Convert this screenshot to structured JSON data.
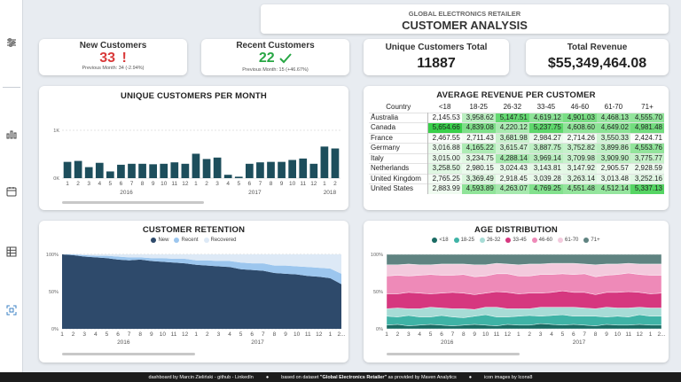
{
  "header": {
    "subtitle": "GLOBAL ELECTRONICS RETAILER",
    "title": "CUSTOMER ANALYSIS"
  },
  "kpis": {
    "new_customers": {
      "label": "New Customers",
      "value": "33",
      "sub": "Previous Month: 34 (-2.94%)",
      "color": "#d93a3a"
    },
    "recent_customers": {
      "label": "Recent Customers",
      "value": "22",
      "sub": "Previous Month: 15 (+46.67%)",
      "color": "#28a745"
    },
    "unique_total": {
      "label": "Unique Customers Total",
      "value": "11887"
    },
    "total_revenue": {
      "label": "Total Revenue",
      "value": "$55,349,464.08"
    }
  },
  "sidebar": {
    "icons": [
      "sliders-icon",
      "bar-chart-icon",
      "calendar-icon",
      "table-icon",
      "scan-icon"
    ]
  },
  "revenue_table": {
    "title": "AVERAGE REVENUE PER CUSTOMER",
    "corner": "Country",
    "columns": [
      "<18",
      "18-25",
      "26-32",
      "33-45",
      "46-60",
      "61-70",
      "71+"
    ],
    "rows": [
      {
        "country": "Australia",
        "values": [
          "2,145.53",
          "3,958.62",
          "5,147.51",
          "4,619.12",
          "4,901.03",
          "4,468.13",
          "4,555.70"
        ]
      },
      {
        "country": "Canada",
        "values": [
          "5,654.66",
          "4,839.08",
          "4,220.12",
          "5,237.75",
          "4,608.60",
          "4,649.02",
          "4,981.48"
        ]
      },
      {
        "country": "France",
        "values": [
          "2,467.55",
          "2,711.43",
          "3,681.98",
          "2,984.27",
          "2,714.26",
          "3,550.33",
          "2,424.71"
        ]
      },
      {
        "country": "Germany",
        "values": [
          "3,016.88",
          "4,165.22",
          "3,615.47",
          "3,887.75",
          "3,752.82",
          "3,899.86",
          "4,553.76"
        ]
      },
      {
        "country": "Italy",
        "values": [
          "3,015.00",
          "3,234.75",
          "4,288.14",
          "3,969.14",
          "3,709.98",
          "3,909.90",
          "3,775.77"
        ]
      },
      {
        "country": "Netherlands",
        "values": [
          "3,258.50",
          "2,980.15",
          "3,024.43",
          "3,143.81",
          "3,147.92",
          "2,905.57",
          "2,928.59"
        ]
      },
      {
        "country": "United Kingdom",
        "values": [
          "2,765.25",
          "3,369.49",
          "2,918.45",
          "3,039.28",
          "3,263.14",
          "3,013.48",
          "3,252.16"
        ]
      },
      {
        "country": "United States",
        "values": [
          "2,883.99",
          "4,593.89",
          "4,263.07",
          "4,769.25",
          "4,551.48",
          "4,512.14",
          "5,337.13"
        ]
      }
    ]
  },
  "chart_data": [
    {
      "type": "bar",
      "title": "UNIQUE CUSTOMERS PER MONTH",
      "categories": [
        "1",
        "2",
        "3",
        "4",
        "5",
        "6",
        "7",
        "8",
        "9",
        "10",
        "11",
        "12",
        "1",
        "2",
        "3",
        "4",
        "5",
        "6",
        "7",
        "8",
        "9",
        "10",
        "11",
        "12",
        "1",
        "2"
      ],
      "year_labels": [
        "2016",
        "2017",
        "2018"
      ],
      "values": [
        340,
        360,
        230,
        320,
        140,
        280,
        300,
        300,
        290,
        300,
        330,
        300,
        510,
        400,
        430,
        70,
        30,
        300,
        330,
        340,
        340,
        380,
        410,
        300,
        660,
        620
      ],
      "yticks": [
        "0K",
        "1K"
      ],
      "ylim": [
        0,
        1000
      ]
    },
    {
      "type": "area",
      "title": "CUSTOMER RETENTION",
      "legend": [
        "New",
        "Recent",
        "Recovered"
      ],
      "colors": [
        "#2e4a6b",
        "#9cc6ee",
        "#dde9f6"
      ],
      "categories": [
        "1",
        "2",
        "3",
        "4",
        "5",
        "6",
        "7",
        "8",
        "9",
        "10",
        "11",
        "12",
        "1",
        "2",
        "3",
        "4",
        "5",
        "6",
        "7",
        "8",
        "9",
        "10",
        "11",
        "12",
        "1",
        "2..."
      ],
      "year_labels": [
        "2016",
        "2017"
      ],
      "yticks": [
        "0%",
        "50%",
        "100%"
      ],
      "series": [
        {
          "name": "New",
          "values": [
            100,
            99,
            97,
            96,
            95,
            93,
            92,
            93,
            91,
            90,
            89,
            88,
            86,
            85,
            84,
            83,
            80,
            79,
            78,
            75,
            74,
            73,
            71,
            70,
            68,
            60
          ]
        },
        {
          "name": "Recent",
          "values": [
            0,
            1,
            2,
            2,
            3,
            4,
            4,
            3,
            4,
            5,
            5,
            6,
            6,
            7,
            7,
            8,
            9,
            9,
            10,
            10,
            11,
            11,
            12,
            12,
            13,
            14
          ]
        },
        {
          "name": "Recovered",
          "values": [
            0,
            0,
            1,
            2,
            2,
            3,
            4,
            4,
            5,
            5,
            6,
            6,
            8,
            8,
            9,
            9,
            11,
            12,
            12,
            15,
            15,
            16,
            17,
            18,
            19,
            26
          ]
        }
      ]
    },
    {
      "type": "area",
      "title": "AGE DISTRIBUTION",
      "legend": [
        "<18",
        "18-25",
        "26-32",
        "33-45",
        "46-60",
        "61-70",
        "71+"
      ],
      "colors": [
        "#1a6b63",
        "#3fb3a6",
        "#a7dcd6",
        "#d6377f",
        "#ee8ab8",
        "#f3cadd",
        "#5f8381"
      ],
      "categories": [
        "1",
        "2",
        "3",
        "4",
        "5",
        "6",
        "7",
        "8",
        "9",
        "10",
        "11",
        "12",
        "1",
        "2",
        "3",
        "4",
        "5",
        "6",
        "7",
        "8",
        "9",
        "10",
        "11",
        "12",
        "1",
        "2..."
      ],
      "year_labels": [
        "2016",
        "2017"
      ],
      "yticks": [
        "0%",
        "50%",
        "100%"
      ],
      "series": [
        {
          "name": "<18",
          "values": [
            5,
            6,
            4,
            5,
            6,
            5,
            4,
            5,
            6,
            5,
            4,
            6,
            5,
            5,
            7,
            6,
            5,
            6,
            5,
            4,
            6,
            5,
            5,
            6,
            5,
            5
          ]
        },
        {
          "name": "18-25",
          "values": [
            12,
            10,
            14,
            11,
            10,
            13,
            12,
            10,
            11,
            14,
            12,
            10,
            12,
            13,
            10,
            12,
            14,
            11,
            12,
            13,
            10,
            12,
            11,
            13,
            12,
            12
          ]
        },
        {
          "name": "26-32",
          "values": [
            10,
            12,
            9,
            11,
            13,
            10,
            11,
            12,
            9,
            10,
            13,
            11,
            10,
            9,
            12,
            11,
            10,
            12,
            11,
            10,
            13,
            11,
            12,
            10,
            11,
            11
          ]
        },
        {
          "name": "33-45",
          "values": [
            20,
            19,
            22,
            21,
            18,
            20,
            22,
            21,
            20,
            19,
            21,
            22,
            20,
            21,
            19,
            20,
            22,
            20,
            21,
            19,
            20,
            21,
            22,
            20,
            19,
            20
          ]
        },
        {
          "name": "46-60",
          "values": [
            24,
            25,
            22,
            24,
            26,
            24,
            23,
            25,
            24,
            23,
            24,
            25,
            24,
            23,
            25,
            24,
            23,
            24,
            25,
            24,
            23,
            24,
            25,
            24,
            25,
            24
          ]
        },
        {
          "name": "61-70",
          "values": [
            15,
            14,
            16,
            14,
            13,
            15,
            15,
            14,
            16,
            15,
            14,
            13,
            15,
            16,
            14,
            15,
            14,
            15,
            13,
            16,
            15,
            14,
            13,
            14,
            15,
            15
          ]
        },
        {
          "name": "71+",
          "values": [
            14,
            14,
            13,
            14,
            14,
            13,
            13,
            13,
            14,
            14,
            12,
            13,
            14,
            13,
            13,
            12,
            12,
            12,
            13,
            14,
            13,
            13,
            12,
            13,
            13,
            13
          ]
        }
      ]
    }
  ],
  "footer": {
    "credit": "dashboard by Marcin Zieliński - github - LinkedIn",
    "dataset_pre": "based on dataset",
    "dataset_name": "\"Global Electronics Retailer\"",
    "dataset_post": "as provided by Maven Analytics",
    "icons": "icon images by Icons8"
  }
}
